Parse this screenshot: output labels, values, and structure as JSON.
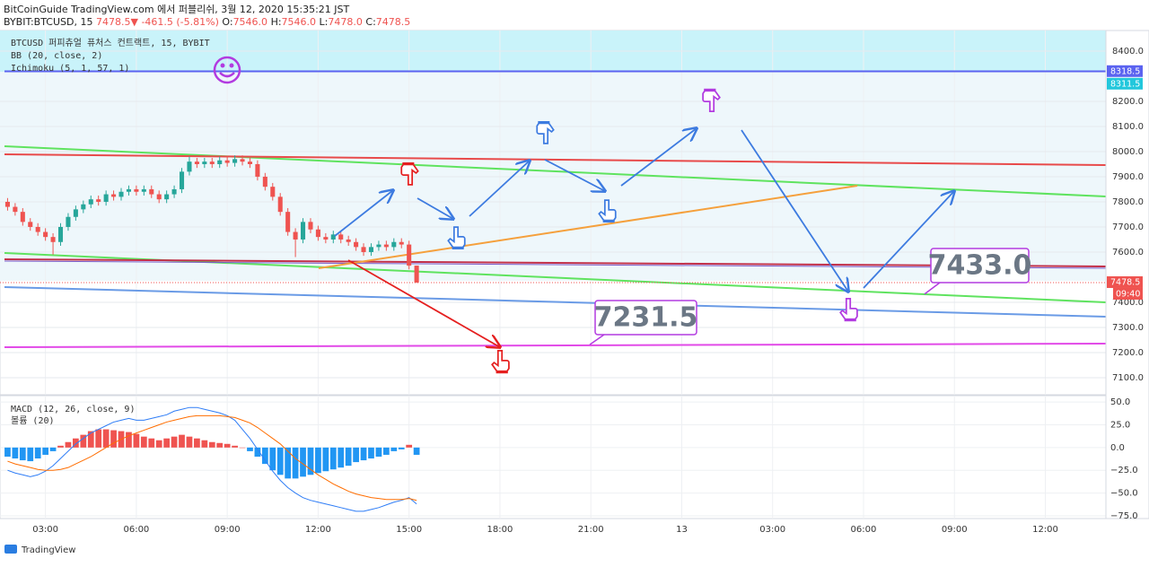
{
  "header": {
    "line1": "BitCoinGuide TradingView.com 에서 퍼블리쉬, 3월 12, 2020 15:35:21 JST",
    "symbol": "BYBIT:BTCUSD, 15",
    "last": "7478.5",
    "arrow": "▼",
    "change": "-461.5 (-5.81%)",
    "o_label": "O:",
    "o": "7546.0",
    "h_label": "H:",
    "h": "7546.0",
    "l_label": "L:",
    "l": "7478.0",
    "c_label": "C:",
    "c": "7478.5"
  },
  "footer": {
    "brand": "TradingView"
  },
  "chart_data": [
    {
      "type": "candlestick",
      "legend": [
        "BTCUSD 퍼피츄얼 퓨처스 컨트랙트, 15, BYBIT",
        "BB (20, close, 2)",
        "Ichimoku (5, 1, 57, 1)"
      ],
      "up_color": "#26a69a",
      "down_color": "#ef5350",
      "open": [
        7800,
        7780,
        7760,
        7720,
        7700,
        7680,
        7660,
        7640,
        7700,
        7740,
        7770,
        7790,
        7810,
        7800,
        7830,
        7820,
        7840,
        7850,
        7840,
        7850,
        7830,
        7810,
        7830,
        7850,
        7920,
        7960,
        7950,
        7960,
        7950,
        7965,
        7955,
        7970,
        7960,
        7950,
        7900,
        7860,
        7820,
        7760,
        7680,
        7650,
        7720,
        7690,
        7660,
        7650,
        7670,
        7650,
        7640,
        7620,
        7600,
        7620,
        7630,
        7620,
        7640,
        7630,
        7546
      ],
      "high": [
        7815,
        7795,
        7775,
        7735,
        7715,
        7695,
        7675,
        7715,
        7755,
        7785,
        7805,
        7825,
        7825,
        7845,
        7845,
        7855,
        7865,
        7865,
        7865,
        7865,
        7845,
        7845,
        7865,
        7935,
        7980,
        7975,
        7975,
        7975,
        7980,
        7980,
        7985,
        7985,
        7975,
        7965,
        7915,
        7875,
        7835,
        7775,
        7695,
        7735,
        7735,
        7705,
        7675,
        7685,
        7685,
        7665,
        7655,
        7635,
        7635,
        7645,
        7645,
        7655,
        7655,
        7645,
        7546
      ],
      "low": [
        7765,
        7745,
        7705,
        7685,
        7665,
        7645,
        7590,
        7625,
        7685,
        7725,
        7755,
        7775,
        7785,
        7785,
        7805,
        7805,
        7825,
        7825,
        7825,
        7815,
        7795,
        7795,
        7815,
        7835,
        7905,
        7935,
        7935,
        7935,
        7935,
        7940,
        7940,
        7945,
        7935,
        7885,
        7845,
        7805,
        7745,
        7665,
        7580,
        7635,
        7675,
        7645,
        7635,
        7635,
        7635,
        7625,
        7605,
        7585,
        7585,
        7605,
        7605,
        7605,
        7615,
        7531,
        7478
      ],
      "close": [
        7780,
        7760,
        7720,
        7700,
        7680,
        7660,
        7640,
        7700,
        7740,
        7770,
        7790,
        7810,
        7800,
        7830,
        7820,
        7840,
        7850,
        7840,
        7850,
        7830,
        7810,
        7830,
        7850,
        7920,
        7960,
        7950,
        7960,
        7950,
        7965,
        7955,
        7970,
        7960,
        7950,
        7900,
        7860,
        7820,
        7760,
        7680,
        7650,
        7720,
        7690,
        7660,
        7650,
        7670,
        7650,
        7640,
        7620,
        7600,
        7620,
        7630,
        7620,
        7640,
        7630,
        7546,
        7478.5
      ],
      "xlim": [
        -1,
        145
      ],
      "xticks": [
        {
          "value": 5,
          "label": "03:00"
        },
        {
          "value": 17,
          "label": "06:00"
        },
        {
          "value": 29,
          "label": "09:00"
        },
        {
          "value": 41,
          "label": "12:00"
        },
        {
          "value": 53,
          "label": "15:00"
        },
        {
          "value": 65,
          "label": "18:00"
        },
        {
          "value": 77,
          "label": "21:00"
        },
        {
          "value": 89,
          "label": "13"
        },
        {
          "value": 101,
          "label": "03:00"
        },
        {
          "value": 113,
          "label": "06:00"
        },
        {
          "value": 125,
          "label": "09:00"
        },
        {
          "value": 137,
          "label": "12:00"
        }
      ],
      "ylim": [
        7032,
        8482
      ],
      "yticks": [
        {
          "value": 8400,
          "label": "8400.0"
        },
        {
          "value": 8200,
          "label": "8200.0"
        },
        {
          "value": 8100,
          "label": "8100.0"
        },
        {
          "value": 8000,
          "label": "8000.0"
        },
        {
          "value": 7900,
          "label": "7900.0"
        },
        {
          "value": 7800,
          "label": "7800.0"
        },
        {
          "value": 7700,
          "label": "7700.0"
        },
        {
          "value": 7600,
          "label": "7600.0"
        },
        {
          "value": 7400,
          "label": "7400.0"
        },
        {
          "value": 7300,
          "label": "7300.0"
        },
        {
          "value": 7200,
          "label": "7200.0"
        },
        {
          "value": 7100,
          "label": "7100.0"
        }
      ],
      "grid": true,
      "price_labels": [
        {
          "value": 8318.5,
          "label": "8318.5",
          "color": "#5b63f0"
        },
        {
          "value": 8311.5,
          "label": "8311.5",
          "color": "#22c7dc"
        },
        {
          "value": 7478.5,
          "label": "7478.5",
          "color": "#ef5350"
        }
      ],
      "countdown": "09:40",
      "annotations": [
        {
          "value": 7231.5,
          "label": "7231.5"
        },
        {
          "value": 7433.0,
          "label": "7433.0"
        }
      ]
    },
    {
      "type": "macd",
      "legend": [
        "MACD (12, 26, close, 9)",
        "볼륨 (20)"
      ],
      "histogram": {
        "up_color": "#ef5350",
        "down_color": "#2196f3",
        "values": [
          -10,
          -12,
          -14,
          -15,
          -12,
          -8,
          -4,
          2,
          6,
          10,
          14,
          18,
          20,
          20,
          19,
          18,
          17,
          15,
          12,
          10,
          8,
          10,
          12,
          14,
          12,
          10,
          8,
          6,
          5,
          4,
          2,
          0,
          -4,
          -10,
          -18,
          -25,
          -30,
          -34,
          -34,
          -32,
          -30,
          -28,
          -26,
          -24,
          -22,
          -20,
          -16,
          -14,
          -12,
          -10,
          -8,
          -4,
          -2,
          3,
          -8
        ]
      },
      "series": [
        {
          "color": "#2f7df6",
          "values": [
            -25,
            -28,
            -30,
            -32,
            -30,
            -26,
            -20,
            -12,
            -4,
            4,
            10,
            16,
            20,
            24,
            28,
            30,
            32,
            30,
            30,
            32,
            34,
            36,
            40,
            42,
            44,
            44,
            42,
            40,
            38,
            35,
            30,
            20,
            10,
            -2,
            -14,
            -26,
            -36,
            -44,
            -50,
            -55,
            -58,
            -60,
            -62,
            -64,
            -66,
            -68,
            -70,
            -70,
            -68,
            -66,
            -63,
            -60,
            -58,
            -55,
            -62
          ]
        },
        {
          "color": "#ff6d00",
          "values": [
            -15,
            -18,
            -20,
            -22,
            -24,
            -25,
            -25,
            -24,
            -22,
            -18,
            -14,
            -10,
            -5,
            0,
            5,
            9,
            13,
            16,
            19,
            22,
            25,
            28,
            30,
            32,
            34,
            35,
            35,
            35,
            35,
            34,
            33,
            30,
            27,
            22,
            16,
            10,
            4,
            -4,
            -12,
            -18,
            -24,
            -30,
            -35,
            -40,
            -44,
            -48,
            -51,
            -53,
            -55,
            -56,
            -57,
            -57,
            -57,
            -56,
            -58
          ]
        }
      ],
      "ylim": [
        -78,
        57
      ],
      "yticks": [
        {
          "value": 50,
          "label": "50.0"
        },
        {
          "value": 25,
          "label": "25.0"
        },
        {
          "value": 0,
          "label": "0.0"
        },
        {
          "value": -25,
          "label": "−25.0"
        },
        {
          "value": -50,
          "label": "−50.0"
        },
        {
          "value": -75,
          "label": "−75.0"
        }
      ]
    }
  ]
}
